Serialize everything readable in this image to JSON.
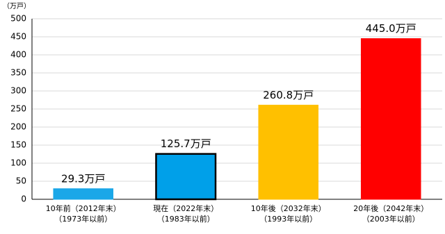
{
  "chart_data": {
    "type": "bar",
    "y_axis_label": "（万戸）",
    "categories": [
      [
        "10年前（2012年末）",
        "（1973年以前）"
      ],
      [
        "現在（2022年末）",
        "（1983年以前）"
      ],
      [
        "10年後（2032年末）",
        "（1993年以前）"
      ],
      [
        "20年後（2042年末）",
        "（2003年以前）"
      ]
    ],
    "values": [
      29.3,
      125.7,
      260.8,
      445.0
    ],
    "value_labels": [
      "29.3万戸",
      "125.7万戸",
      "260.8万戸",
      "445.0万戸"
    ],
    "colors": [
      "#1aa7e8",
      "#00a0e9",
      "#ffc000",
      "#ff0000"
    ],
    "edgecolors": [
      "#1aa7e8",
      "#000000",
      "#ffc000",
      "#ff0000"
    ],
    "ylim": [
      0,
      500
    ],
    "yticks": [
      0,
      50,
      100,
      150,
      200,
      250,
      300,
      350,
      400,
      450,
      500
    ],
    "grid": true
  }
}
